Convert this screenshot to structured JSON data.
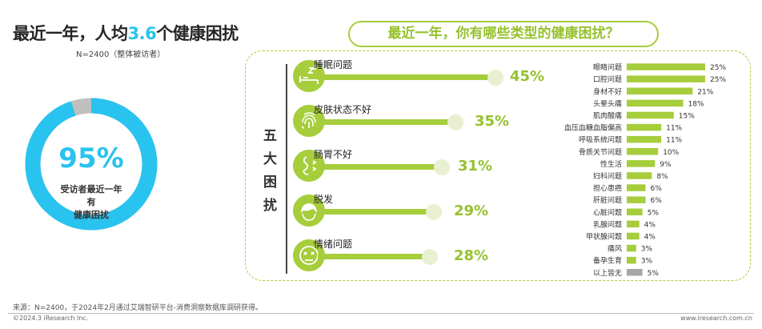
{
  "left": {
    "title_pre": "最近一年，人均",
    "title_num": "3.6",
    "title_post": "个健康困扰",
    "subtitle": "N=2400（整体被访者）",
    "donut_value": 0.95,
    "donut_pct": "95%",
    "donut_caption_line1": "受访者最近一年有",
    "donut_caption_line2": "健康困扰"
  },
  "right": {
    "title": "最近一年，你有哪些类型的健康困扰？",
    "vertical_label": [
      "五",
      "大",
      "困",
      "扰"
    ],
    "top_items": [
      {
        "label": "睡眠问题",
        "value": 45,
        "display": "45%",
        "icon": "sleep-icon"
      },
      {
        "label": "皮肤状态不好",
        "value": 35,
        "display": "35%",
        "icon": "fingerprint-skin-icon"
      },
      {
        "label": "肠胃不好",
        "value": 31,
        "display": "31%",
        "icon": "stomach-icon"
      },
      {
        "label": "脱发",
        "value": 29,
        "display": "29%",
        "icon": "hair-icon"
      },
      {
        "label": "情绪问题",
        "value": 28,
        "display": "28%",
        "icon": "mood-icon"
      }
    ]
  },
  "chart_data": {
    "type": "bar",
    "orientation": "horizontal",
    "categories": [
      "眼睛问题",
      "口腔问题",
      "身材不好",
      "头晕头痛",
      "肌肉酸痛",
      "血压血糖血脂偏高",
      "呼吸系统问题",
      "骨质关节问题",
      "性生活",
      "妇科问题",
      "担心患癌",
      "肝脏问题",
      "心脏问题",
      "乳腺问题",
      "甲状腺问题",
      "痛风",
      "备孕生育",
      "以上皆无"
    ],
    "values": [
      25,
      25,
      21,
      18,
      15,
      11,
      11,
      10,
      9,
      8,
      6,
      6,
      5,
      4,
      4,
      3,
      3,
      5
    ],
    "labels": [
      "25%",
      "25%",
      "21%",
      "18%",
      "15%",
      "11%",
      "11%",
      "10%",
      "9%",
      "8%",
      "6%",
      "6%",
      "5%",
      "4%",
      "4%",
      "3%",
      "3%",
      "5%"
    ],
    "colors": {
      "bar": "#a6cd3b",
      "last_bar": "#a6a6a6"
    },
    "xlim": [
      0,
      25
    ]
  },
  "colors": {
    "accent_blue": "#29c3ef",
    "accent_green": "#a6cd3b",
    "donut_gray": "#bfbfbf"
  },
  "footer": {
    "source": "来源：N=2400，于2024年2月通过艾瑞智研平台-消费洞察数据库调研获得。",
    "copyright": "©2024.3 iResearch Inc.",
    "url": "www.iresearch.com.cn"
  }
}
